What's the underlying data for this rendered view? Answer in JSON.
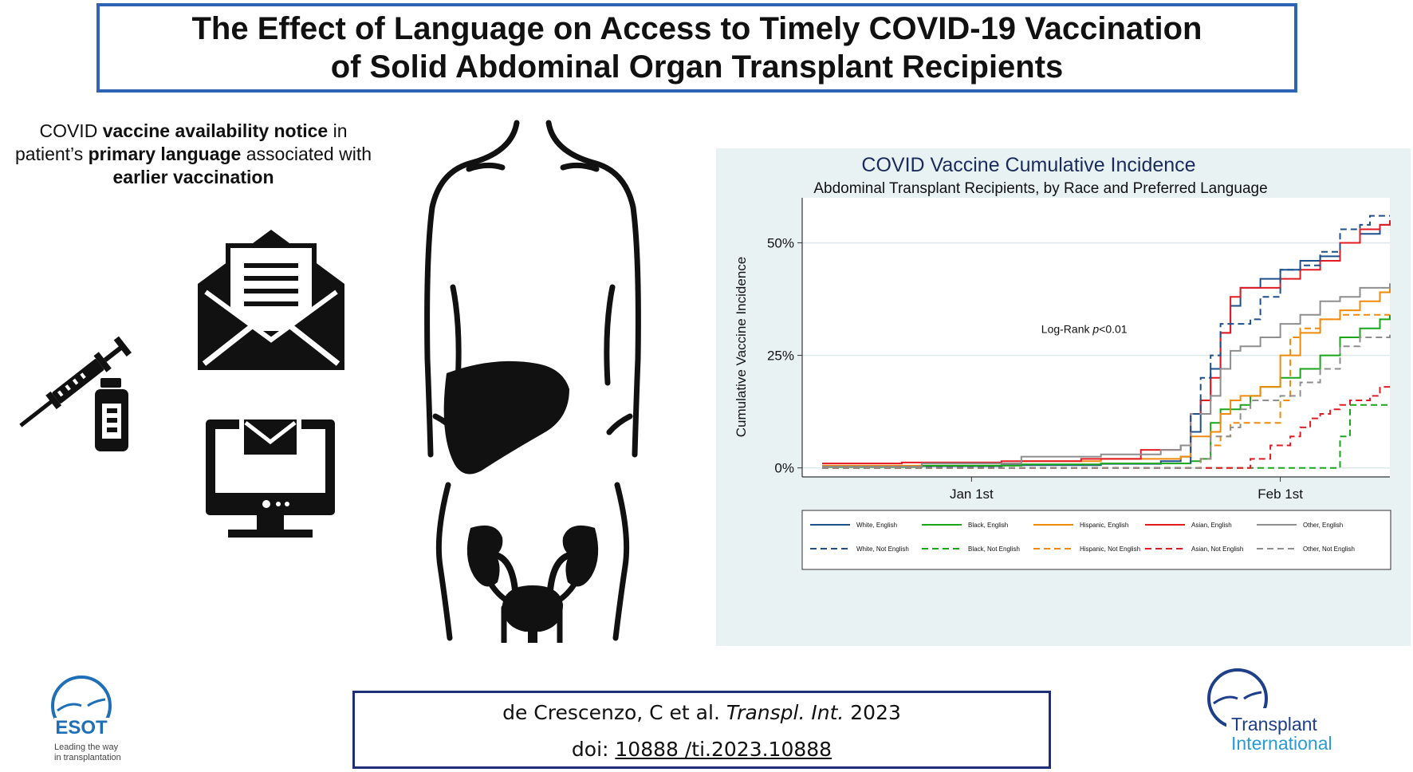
{
  "title": {
    "line1": "The Effect of Language on Access to Timely COVID-19 Vaccination",
    "line2": "of Solid Abdominal Organ Transplant Recipients"
  },
  "tagline": {
    "t1": "COVID ",
    "b1": "vaccine availability notice",
    "t2": " in",
    "t3": "patient’s ",
    "b2": "primary language",
    "t4": " associated with",
    "b3": "earlier vaccination"
  },
  "icons": {
    "syringe": "syringe-vial-icon",
    "envelope": "open-envelope-letter-icon",
    "monitor": "computer-monitor-email-icon",
    "body": "human-torso-liver-kidney-bladder-icon"
  },
  "chart_data": {
    "type": "line",
    "title": "COVID Vaccine Cumulative Incidence",
    "subtitle": "Abdominal Transplant Recipients, by Race and Preferred Language",
    "xlabel": "",
    "ylabel": "Cumulative Vaccine Incidence",
    "x_unit": "days since Dec 15, 2020",
    "xlim": [
      0,
      59
    ],
    "ylim": [
      -2,
      60
    ],
    "x_ticks": [
      {
        "value": 17,
        "label": "Jan 1st"
      },
      {
        "value": 48,
        "label": "Feb 1st"
      }
    ],
    "y_ticks": [
      {
        "value": 0,
        "label": "0%"
      },
      {
        "value": 25,
        "label": "25%"
      },
      {
        "value": 50,
        "label": "50%"
      }
    ],
    "grid": true,
    "annotation": {
      "x": 24,
      "y": 30,
      "text_prefix": "Log-Rank ",
      "text_italic": "p",
      "text_suffix": "<0.01"
    },
    "legend_position": "bottom",
    "colors": {
      "white": "#1d4f8b",
      "black": "#1aa51a",
      "hispanic": "#f08a0c",
      "asian": "#e41a22",
      "other": "#8e8e8e"
    },
    "series": [
      {
        "name": "White, English",
        "color": "#1d4f8b",
        "dash": false,
        "points": [
          [
            2,
            0.3
          ],
          [
            10,
            0.4
          ],
          [
            20,
            0.6
          ],
          [
            30,
            0.9
          ],
          [
            36,
            1.5
          ],
          [
            38,
            2.5
          ],
          [
            39,
            8
          ],
          [
            40,
            15
          ],
          [
            41,
            22
          ],
          [
            42,
            30
          ],
          [
            43,
            36
          ],
          [
            44,
            40
          ],
          [
            46,
            42
          ],
          [
            48,
            44
          ],
          [
            50,
            46
          ],
          [
            52,
            47
          ],
          [
            54,
            50
          ],
          [
            56,
            52
          ],
          [
            58,
            54
          ],
          [
            59,
            55
          ]
        ]
      },
      {
        "name": "Black, English",
        "color": "#1aa51a",
        "dash": false,
        "points": [
          [
            2,
            0.2
          ],
          [
            12,
            0.5
          ],
          [
            22,
            0.8
          ],
          [
            30,
            1
          ],
          [
            39,
            1.5
          ],
          [
            40,
            2
          ],
          [
            41,
            10
          ],
          [
            42,
            13
          ],
          [
            44,
            14
          ],
          [
            45,
            16
          ],
          [
            46,
            18
          ],
          [
            48,
            20
          ],
          [
            50,
            22
          ],
          [
            52,
            25
          ],
          [
            54,
            29
          ],
          [
            56,
            31
          ],
          [
            58,
            33
          ],
          [
            59,
            34
          ]
        ]
      },
      {
        "name": "Hispanic, English",
        "color": "#f08a0c",
        "dash": false,
        "points": [
          [
            2,
            0.5
          ],
          [
            12,
            1
          ],
          [
            22,
            1.5
          ],
          [
            30,
            2
          ],
          [
            38,
            2.5
          ],
          [
            39,
            7
          ],
          [
            41,
            8
          ],
          [
            42,
            12
          ],
          [
            43,
            15
          ],
          [
            44,
            16
          ],
          [
            46,
            18
          ],
          [
            48,
            25
          ],
          [
            50,
            30
          ],
          [
            52,
            33
          ],
          [
            54,
            35
          ],
          [
            56,
            37
          ],
          [
            58,
            39
          ],
          [
            59,
            40
          ]
        ]
      },
      {
        "name": "Asian, English",
        "color": "#e41a22",
        "dash": false,
        "points": [
          [
            2,
            1
          ],
          [
            10,
            1.2
          ],
          [
            20,
            1.5
          ],
          [
            28,
            2
          ],
          [
            34,
            4
          ],
          [
            38,
            5
          ],
          [
            39,
            12
          ],
          [
            40,
            15
          ],
          [
            41,
            20
          ],
          [
            42,
            30
          ],
          [
            43,
            38
          ],
          [
            44,
            40
          ],
          [
            46,
            40
          ],
          [
            48,
            42
          ],
          [
            50,
            44
          ],
          [
            52,
            46
          ],
          [
            54,
            50
          ],
          [
            56,
            53
          ],
          [
            58,
            54
          ],
          [
            59,
            55
          ]
        ]
      },
      {
        "name": "Other, English",
        "color": "#8e8e8e",
        "dash": false,
        "points": [
          [
            2,
            0.3
          ],
          [
            12,
            1
          ],
          [
            22,
            2.5
          ],
          [
            30,
            3
          ],
          [
            36,
            4
          ],
          [
            38,
            5
          ],
          [
            39,
            12
          ],
          [
            41,
            16
          ],
          [
            42,
            22
          ],
          [
            43,
            26
          ],
          [
            44,
            27
          ],
          [
            46,
            29
          ],
          [
            48,
            32
          ],
          [
            50,
            34
          ],
          [
            52,
            37
          ],
          [
            54,
            38
          ],
          [
            56,
            40
          ],
          [
            59,
            41
          ]
        ]
      },
      {
        "name": "White, Not English",
        "color": "#1d4f8b",
        "dash": true,
        "points": [
          [
            2,
            0
          ],
          [
            38,
            0
          ],
          [
            39,
            12
          ],
          [
            40,
            20
          ],
          [
            41,
            25
          ],
          [
            42,
            32
          ],
          [
            44,
            32
          ],
          [
            45,
            33
          ],
          [
            46,
            38
          ],
          [
            48,
            44
          ],
          [
            50,
            45
          ],
          [
            52,
            48
          ],
          [
            54,
            53
          ],
          [
            56,
            54
          ],
          [
            57,
            56
          ],
          [
            59,
            56
          ]
        ]
      },
      {
        "name": "Black, Not English",
        "color": "#1aa51a",
        "dash": true,
        "points": [
          [
            2,
            0
          ],
          [
            39,
            0
          ],
          [
            40,
            0
          ],
          [
            43,
            0
          ],
          [
            44,
            0
          ],
          [
            51,
            0
          ],
          [
            53,
            0
          ],
          [
            54,
            7
          ],
          [
            55,
            14
          ],
          [
            59,
            14
          ]
        ]
      },
      {
        "name": "Hispanic, Not English",
        "color": "#f08a0c",
        "dash": true,
        "points": [
          [
            2,
            0
          ],
          [
            39,
            0
          ],
          [
            40,
            2
          ],
          [
            41,
            5
          ],
          [
            42,
            7
          ],
          [
            43,
            10
          ],
          [
            44,
            10
          ],
          [
            46,
            10
          ],
          [
            48,
            15
          ],
          [
            49,
            29
          ],
          [
            50,
            31
          ],
          [
            52,
            33
          ],
          [
            54,
            34
          ],
          [
            59,
            34
          ]
        ]
      },
      {
        "name": "Asian, Not English",
        "color": "#e41a22",
        "dash": true,
        "points": [
          [
            2,
            0
          ],
          [
            39,
            0
          ],
          [
            44,
            0
          ],
          [
            45,
            2
          ],
          [
            47,
            5
          ],
          [
            49,
            7
          ],
          [
            50,
            9
          ],
          [
            51,
            11
          ],
          [
            52,
            12
          ],
          [
            53,
            13
          ],
          [
            54,
            14
          ],
          [
            55,
            15
          ],
          [
            57,
            16
          ],
          [
            58,
            18
          ],
          [
            59,
            18
          ]
        ]
      },
      {
        "name": "Other, Not English",
        "color": "#8e8e8e",
        "dash": true,
        "points": [
          [
            2,
            0
          ],
          [
            39,
            0
          ],
          [
            40,
            2
          ],
          [
            41,
            7
          ],
          [
            43,
            9
          ],
          [
            44,
            13
          ],
          [
            45,
            15
          ],
          [
            48,
            16
          ],
          [
            50,
            19
          ],
          [
            52,
            22
          ],
          [
            54,
            27
          ],
          [
            56,
            29
          ],
          [
            59,
            30
          ]
        ]
      }
    ]
  },
  "citation": {
    "line1_prefix": "de Crescenzo, C et al. ",
    "line1_journal": "Transpl.  Int.",
    "line1_year": " 2023",
    "line2_prefix": "doi: ",
    "line2_doi": "10888 /ti.2023.10888"
  },
  "logos": {
    "esot": {
      "name": "ESOT",
      "tagline1": "Leading the way",
      "tagline2": "in transplantation"
    },
    "ti": {
      "line1": "Transplant",
      "line2": "International"
    }
  }
}
